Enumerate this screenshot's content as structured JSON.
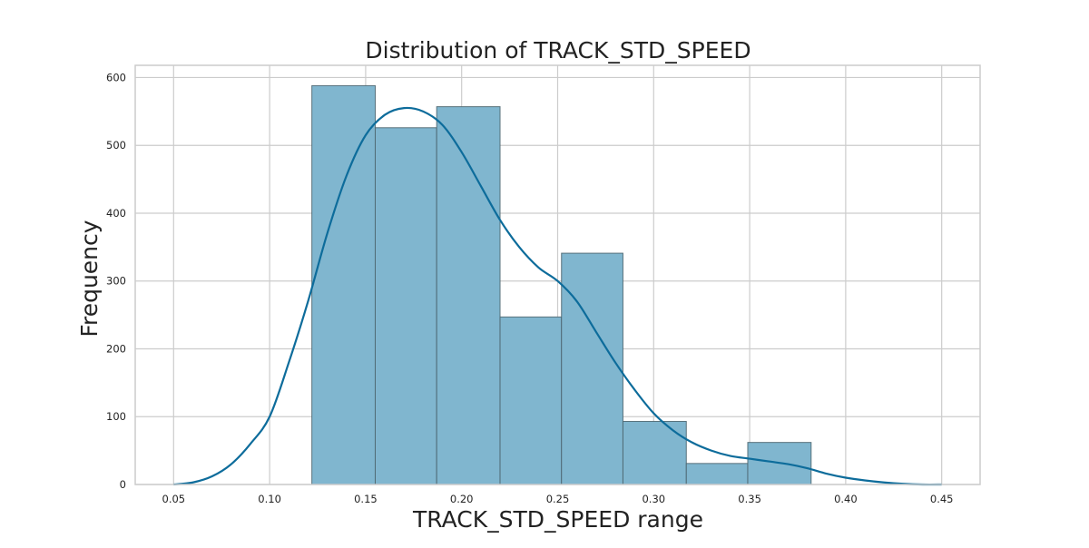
{
  "chart_data": {
    "type": "bar",
    "title": "Distribution of TRACK_STD_SPEED",
    "xlabel": "TRACK_STD_SPEED range",
    "ylabel": "Frequency",
    "xlim": [
      0.03,
      0.47
    ],
    "ylim": [
      0,
      618
    ],
    "xticks": [
      "0.05",
      "0.10",
      "0.15",
      "0.20",
      "0.25",
      "0.30",
      "0.35",
      "0.40",
      "0.45"
    ],
    "xtick_values": [
      0.05,
      0.1,
      0.15,
      0.2,
      0.25,
      0.3,
      0.35,
      0.4,
      0.45
    ],
    "yticks": [
      "0",
      "100",
      "200",
      "300",
      "400",
      "500",
      "600"
    ],
    "ytick_values": [
      0,
      100,
      200,
      300,
      400,
      500,
      600
    ],
    "grid": true,
    "bins": [
      {
        "x0": 0.122,
        "x1": 0.155,
        "value": 588
      },
      {
        "x0": 0.155,
        "x1": 0.187,
        "value": 526
      },
      {
        "x0": 0.187,
        "x1": 0.22,
        "value": 557
      },
      {
        "x0": 0.22,
        "x1": 0.252,
        "value": 247
      },
      {
        "x0": 0.252,
        "x1": 0.284,
        "value": 341
      },
      {
        "x0": 0.284,
        "x1": 0.317,
        "value": 93
      },
      {
        "x0": 0.317,
        "x1": 0.349,
        "value": 31
      },
      {
        "x0": 0.349,
        "x1": 0.382,
        "value": 62
      }
    ],
    "kde": {
      "x": [
        0.05,
        0.06,
        0.07,
        0.08,
        0.09,
        0.1,
        0.11,
        0.12,
        0.13,
        0.14,
        0.15,
        0.16,
        0.17,
        0.18,
        0.19,
        0.2,
        0.21,
        0.22,
        0.23,
        0.24,
        0.25,
        0.26,
        0.27,
        0.28,
        0.29,
        0.3,
        0.31,
        0.32,
        0.33,
        0.34,
        0.35,
        0.36,
        0.37,
        0.38,
        0.39,
        0.4,
        0.41,
        0.42,
        0.43,
        0.44,
        0.45
      ],
      "y": [
        0,
        3,
        12,
        30,
        60,
        100,
        180,
        270,
        370,
        455,
        515,
        545,
        555,
        550,
        530,
        490,
        440,
        390,
        350,
        320,
        300,
        270,
        225,
        180,
        140,
        105,
        80,
        62,
        50,
        42,
        38,
        34,
        30,
        24,
        16,
        10,
        6,
        3,
        1,
        0,
        0
      ]
    },
    "colors": {
      "bar_fill": "#80b6cf",
      "bar_edge": "#4d6670",
      "kde_line": "#0d6c9b",
      "grid": "#cccccc",
      "spine": "#cccccc",
      "text": "#222222"
    }
  }
}
